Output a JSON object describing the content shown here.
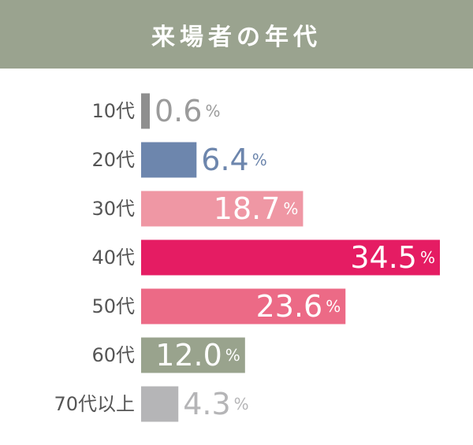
{
  "header": {
    "title": "来場者の年代"
  },
  "chart_data": {
    "type": "bar",
    "orientation": "horizontal",
    "title": "来場者の年代",
    "categories": [
      "10代",
      "20代",
      "30代",
      "40代",
      "50代",
      "60代",
      "70代以上"
    ],
    "values": [
      0.6,
      6.4,
      18.7,
      34.5,
      23.6,
      12.0,
      4.3
    ],
    "value_labels": [
      "0.6",
      "6.4",
      "18.7",
      "34.5",
      "23.6",
      "12.0",
      "4.3"
    ],
    "unit": "%",
    "colors": [
      "#8f8f8f",
      "#6d86ad",
      "#ef97a4",
      "#e51c63",
      "#ec6a86",
      "#99a38d",
      "#b5b5b7"
    ],
    "label_inside": [
      false,
      false,
      true,
      true,
      true,
      true,
      false
    ],
    "label_colors": [
      "#9b9b9b",
      "#6d86ad",
      "#ffffff",
      "#ffffff",
      "#ffffff",
      "#ffffff",
      "#b5b5b7"
    ],
    "category_label_color": "#555555",
    "xlim": [
      0,
      34.5
    ],
    "grid": false,
    "legend": "none"
  }
}
